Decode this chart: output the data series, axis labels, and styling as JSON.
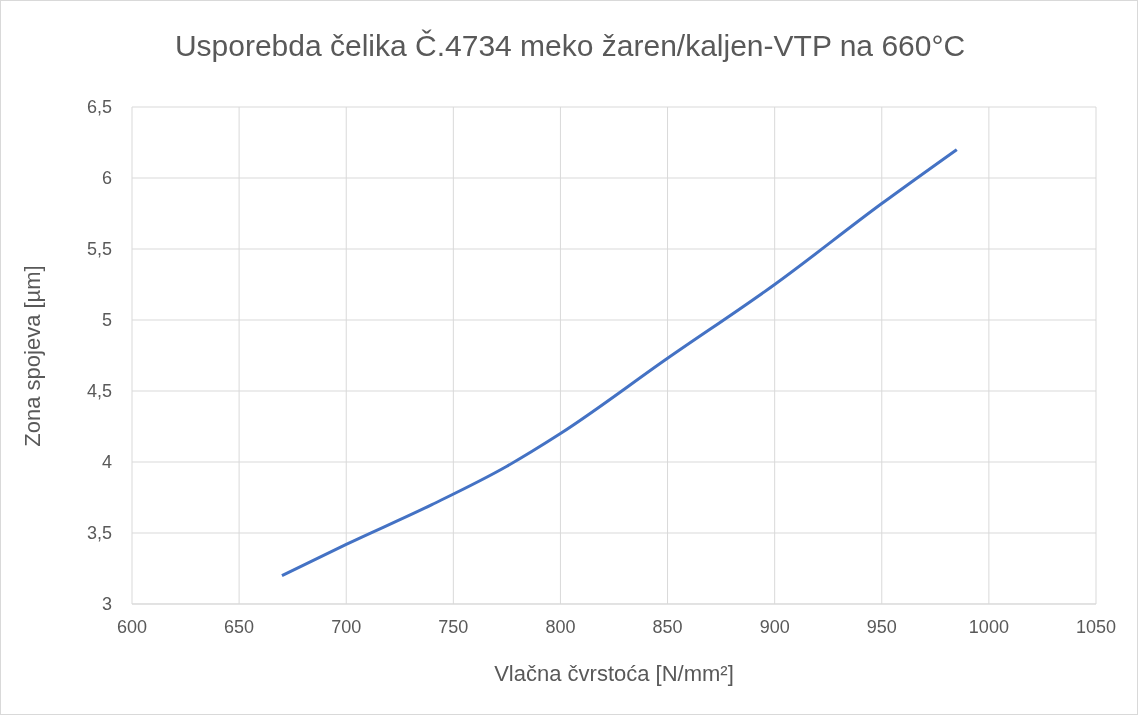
{
  "chart_data": {
    "type": "line",
    "title": "Usporebda čelika Č.4734 meko žaren/kaljen-VTP na 660°C",
    "xlabel": "Vlačna čvrstoća [N/mm²]",
    "ylabel": "Zona spojeva [µm]",
    "x": [
      670,
      700,
      740,
      775,
      800,
      850,
      900,
      950,
      985
    ],
    "series": [
      {
        "color": "#4472c4",
        "values": [
          3.2,
          3.42,
          3.7,
          3.97,
          4.2,
          4.73,
          5.25,
          5.82,
          6.2
        ]
      }
    ],
    "xlim": [
      600,
      1050
    ],
    "xticks": [
      600,
      650,
      700,
      750,
      800,
      850,
      900,
      950,
      1000,
      1050
    ],
    "ylim": [
      3,
      6.5
    ],
    "yticks": [
      3,
      {
        "value": 3.5,
        "label": "3,5"
      },
      4,
      {
        "value": 4.5,
        "label": "4,5"
      },
      5,
      {
        "value": 5.5,
        "label": "5,5"
      },
      6,
      {
        "value": 6.5,
        "label": "6,5"
      }
    ],
    "grid": true,
    "marker": "none",
    "line_style": "solid"
  }
}
